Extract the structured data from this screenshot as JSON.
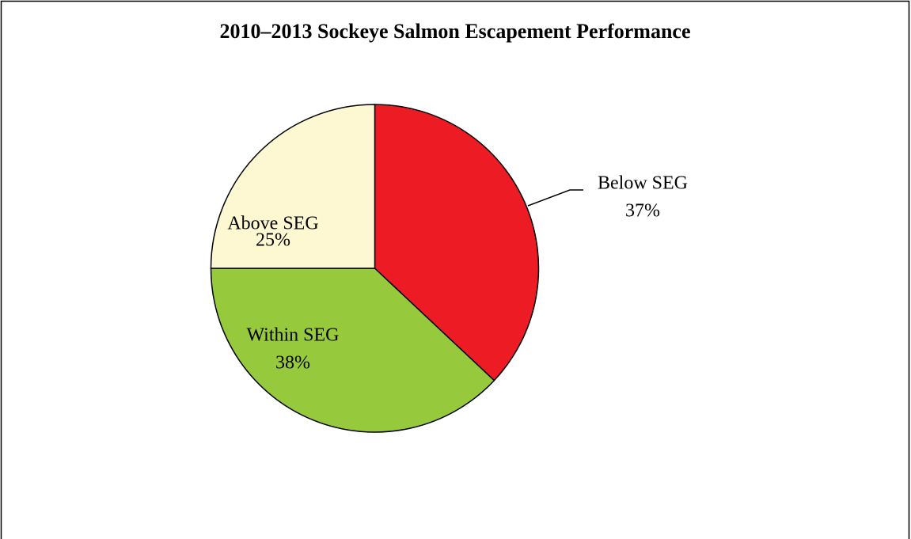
{
  "chart_data": {
    "type": "pie",
    "title": "2010–2013 Sockeye Salmon Escapement Performance",
    "categories": [
      "Below SEG",
      "Within SEG",
      "Above SEG"
    ],
    "values": [
      37,
      38,
      25
    ],
    "value_labels": [
      "37%",
      "38%",
      "25%"
    ],
    "colors": [
      "#ed1c24",
      "#97c93d",
      "#fdf8d2"
    ]
  }
}
